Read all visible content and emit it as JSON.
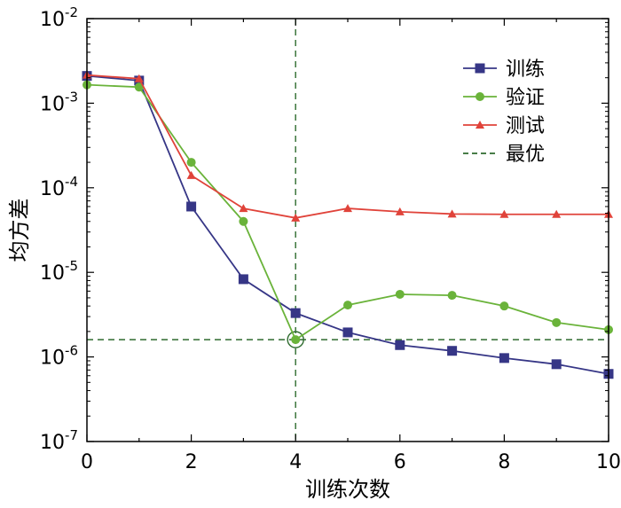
{
  "chart_data": {
    "type": "line",
    "y_scale": "log",
    "xlabel": "训练次数",
    "ylabel": "均方差",
    "xlim": [
      0,
      10
    ],
    "ylim": [
      1e-07,
      0.01
    ],
    "x_ticks": [
      0,
      2,
      4,
      6,
      8,
      10
    ],
    "x_tick_labels": [
      "0",
      "2",
      "4",
      "6",
      "8",
      "10"
    ],
    "y_ticks": [
      {
        "value": 0.01,
        "base": "10",
        "exp": "-2"
      },
      {
        "value": 0.001,
        "base": "10",
        "exp": "-3"
      },
      {
        "value": 0.0001,
        "base": "10",
        "exp": "-4"
      },
      {
        "value": 1e-05,
        "base": "10",
        "exp": "-5"
      },
      {
        "value": 1e-06,
        "base": "10",
        "exp": "-6"
      },
      {
        "value": 1e-07,
        "base": "10",
        "exp": "-7"
      }
    ],
    "series": [
      {
        "name": "训练",
        "color": "#363686",
        "marker": "square",
        "x": [
          0,
          1,
          2,
          3,
          4,
          5,
          6,
          7,
          8,
          9,
          10
        ],
        "y": [
          0.0021,
          0.00185,
          6e-05,
          8.3e-06,
          3.3e-06,
          1.95e-06,
          1.38e-06,
          1.18e-06,
          9.7e-07,
          8.2e-07,
          6.3e-07
        ]
      },
      {
        "name": "验证",
        "color": "#6ab33a",
        "marker": "circle",
        "x": [
          0,
          1,
          2,
          3,
          4,
          5,
          6,
          7,
          8,
          9,
          10
        ],
        "y": [
          0.00165,
          0.00155,
          0.0002,
          4e-05,
          1.6e-06,
          4.1e-06,
          5.5e-06,
          5.35e-06,
          4e-06,
          2.55e-06,
          2.1e-06
        ]
      },
      {
        "name": "测试",
        "color": "#e0433a",
        "marker": "triangle",
        "x": [
          0,
          1,
          2,
          3,
          4,
          5,
          6,
          7,
          8,
          9,
          10
        ],
        "y": [
          0.00215,
          0.00195,
          0.00014,
          5.7e-05,
          4.4e-05,
          5.7e-05,
          5.2e-05,
          4.9e-05,
          4.85e-05,
          4.85e-05,
          4.85e-05
        ]
      }
    ],
    "best": {
      "name": "最优",
      "color": "#2e6b2e",
      "x": 4,
      "y": 1.6e-06
    },
    "legend_position": "top-right"
  }
}
